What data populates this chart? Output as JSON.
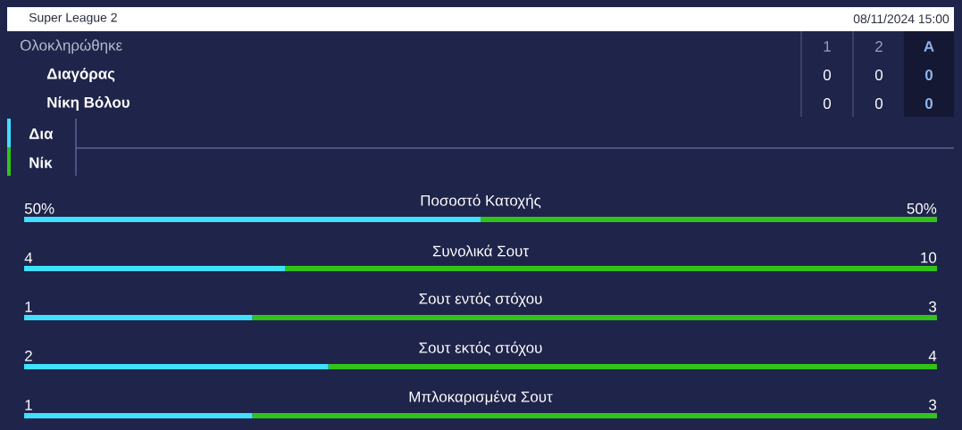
{
  "chart_data": [
    {
      "type": "bar",
      "orientation": "horizontal",
      "stacked": true,
      "legend": "top left",
      "categories": [
        "Ποσοστό Κατοχής"
      ],
      "series": [
        {
          "name": "Δια",
          "color": "#40e0ff",
          "values": [
            50
          ],
          "value_labels": [
            "50%"
          ]
        },
        {
          "name": "Νίκ",
          "color": "#33c21a",
          "values": [
            50
          ],
          "value_labels": [
            "50%"
          ]
        }
      ],
      "annotations": [
        "Super League 2",
        "08/11/2024 15:00",
        "Ολοκληρώθηκε",
        "Διαγόρας",
        "Νίκη Βόλου",
        "1",
        "2",
        "A",
        "0",
        "0",
        "0",
        "0",
        "0",
        "0"
      ]
    },
    {
      "type": "bar",
      "orientation": "horizontal",
      "stacked": true,
      "categories": [
        "Συνολικά Σουτ"
      ],
      "data_labels": true,
      "series": [
        {
          "color": "#40e0ff",
          "values": [
            4
          ]
        },
        {
          "color": "#33c21a",
          "values": [
            10
          ]
        }
      ]
    },
    {
      "type": "bar",
      "orientation": "horizontal",
      "stacked": true,
      "categories": [
        "Σουτ εντός στόχου"
      ],
      "data_labels": true,
      "series": [
        {
          "color": "#40e0ff",
          "values": [
            1
          ]
        },
        {
          "color": "#33c21a",
          "values": [
            3
          ]
        }
      ]
    },
    {
      "type": "bar",
      "orientation": "horizontal",
      "stacked": true,
      "categories": [
        "Σουτ εκτός στόχου"
      ],
      "data_labels": true,
      "series": [
        {
          "color": "#40e0ff",
          "values": [
            2
          ]
        },
        {
          "color": "#33c21a",
          "values": [
            4
          ]
        }
      ]
    },
    {
      "type": "bar",
      "orientation": "horizontal",
      "stacked": true,
      "categories": [
        "Μπλοκαρισμένα Σουτ"
      ],
      "data_labels": true,
      "series": [
        {
          "color": "#40e0ff",
          "values": [
            1
          ]
        },
        {
          "color": "#33c21a",
          "values": [
            3
          ]
        }
      ]
    }
  ]
}
